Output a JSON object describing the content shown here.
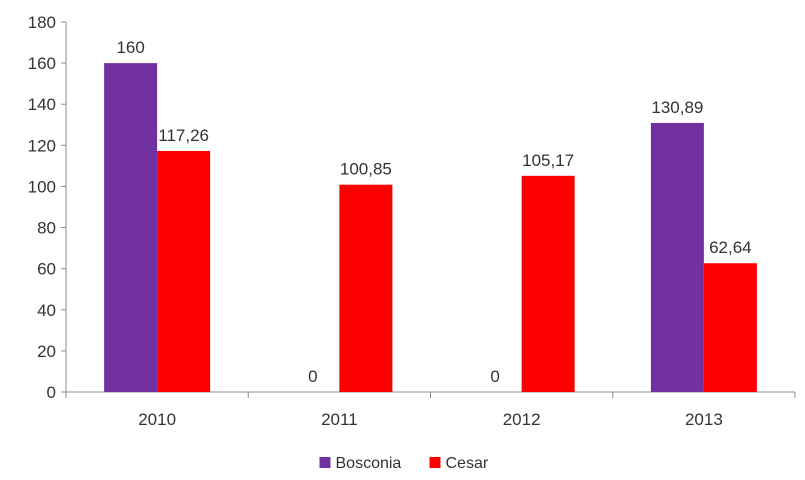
{
  "chart_data": {
    "type": "bar",
    "title": "",
    "xlabel": "",
    "ylabel": "",
    "categories": [
      "2010",
      "2011",
      "2012",
      "2013"
    ],
    "series": [
      {
        "name": "Bosconia",
        "color": "#7030a0",
        "values": [
          160,
          0,
          0,
          130.89
        ],
        "labels": [
          "160",
          "0",
          "0",
          "130,89"
        ]
      },
      {
        "name": "Cesar",
        "color": "#ff0000",
        "values": [
          117.26,
          100.85,
          105.17,
          62.64
        ],
        "labels": [
          "117,26",
          "100,85",
          "105,17",
          "62,64"
        ]
      }
    ],
    "ylim": [
      0,
      180
    ],
    "yticks": [
      "0",
      "20",
      "40",
      "60",
      "80",
      "100",
      "120",
      "140",
      "160",
      "180"
    ],
    "grid": false,
    "legend_position": "bottom"
  }
}
